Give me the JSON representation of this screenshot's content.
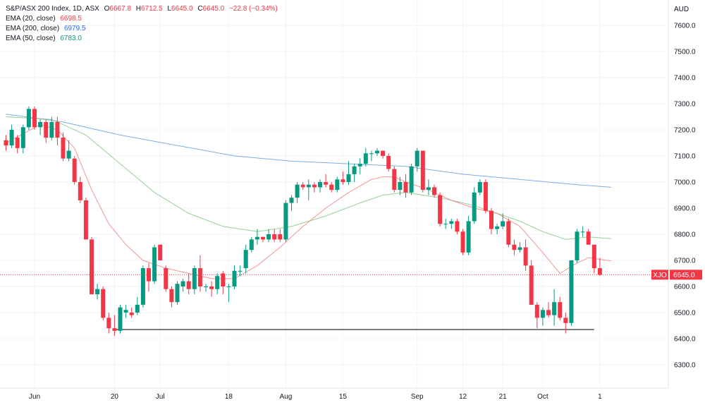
{
  "header": {
    "title": "S&P/ASX 200 Index, 1D, ASX",
    "open_label": "O",
    "open": "6667.8",
    "high_label": "H",
    "high": "6712.5",
    "low_label": "L",
    "low": "6645.0",
    "close_label": "C",
    "close": "6645.0",
    "change": "−22.8 (−0.34%)"
  },
  "indicators": [
    {
      "label": "EMA (20, close)",
      "value": "6698.5",
      "color": "#f23645"
    },
    {
      "label": "EMA (200, close)",
      "value": "6979.5",
      "color": "#2962ff"
    },
    {
      "label": "EMA (50, close)",
      "value": "6783.0",
      "color": "#089981"
    }
  ],
  "price_tag": {
    "symbol": "XJO",
    "value": "6645.0"
  },
  "chart_data": {
    "type": "candlestick",
    "currency": "AUD",
    "ylim": [
      6230,
      7680
    ],
    "y_ticks": [
      6300,
      6400,
      6500,
      6600,
      6700,
      6800,
      6900,
      7000,
      7100,
      7200,
      7300,
      7400,
      7500,
      7600
    ],
    "x_ticks": [
      {
        "label": "Jun",
        "index": 5
      },
      {
        "label": "20",
        "index": 19
      },
      {
        "label": "Jul",
        "index": 27
      },
      {
        "label": "18",
        "index": 39
      },
      {
        "label": "Aug",
        "index": 49
      },
      {
        "label": "15",
        "index": 59
      },
      {
        "label": "Sep",
        "index": 72
      },
      {
        "label": "12",
        "index": 80
      },
      {
        "label": "21",
        "index": 87
      },
      {
        "label": "Oct",
        "index": 94
      },
      {
        "label": "1",
        "index": 104
      }
    ],
    "ohlc": [
      [
        7160,
        7180,
        7120,
        7140
      ],
      [
        7140,
        7220,
        7130,
        7200
      ],
      [
        7170,
        7180,
        7110,
        7130
      ],
      [
        7130,
        7220,
        7110,
        7210
      ],
      [
        7210,
        7290,
        7200,
        7280
      ],
      [
        7280,
        7290,
        7200,
        7210
      ],
      [
        7210,
        7240,
        7180,
        7230
      ],
      [
        7230,
        7240,
        7150,
        7170
      ],
      [
        7170,
        7250,
        7160,
        7230
      ],
      [
        7230,
        7250,
        7140,
        7170
      ],
      [
        7170,
        7190,
        7080,
        7090
      ],
      [
        7090,
        7160,
        7080,
        7120
      ],
      [
        7090,
        7100,
        6990,
        7000
      ],
      [
        7000,
        7020,
        6920,
        6930
      ],
      [
        6930,
        6940,
        6780,
        6780
      ],
      [
        6780,
        6790,
        6570,
        6570
      ],
      [
        6570,
        6610,
        6550,
        6590
      ],
      [
        6590,
        6600,
        6470,
        6480
      ],
      [
        6480,
        6500,
        6420,
        6440
      ],
      [
        6440,
        6490,
        6410,
        6430
      ],
      [
        6430,
        6530,
        6420,
        6520
      ],
      [
        6500,
        6530,
        6480,
        6510
      ],
      [
        6500,
        6520,
        6480,
        6490
      ],
      [
        6500,
        6560,
        6490,
        6530
      ],
      [
        6530,
        6680,
        6520,
        6670
      ],
      [
        6670,
        6690,
        6580,
        6620
      ],
      [
        6620,
        6760,
        6610,
        6750
      ],
      [
        6760,
        6760,
        6700,
        6700
      ],
      [
        6670,
        6680,
        6580,
        6590
      ],
      [
        6590,
        6600,
        6520,
        6540
      ],
      [
        6540,
        6620,
        6530,
        6610
      ],
      [
        6600,
        6630,
        6580,
        6620
      ],
      [
        6620,
        6650,
        6570,
        6590
      ],
      [
        6590,
        6680,
        6570,
        6670
      ],
      [
        6670,
        6720,
        6580,
        6600
      ],
      [
        6600,
        6610,
        6580,
        6600
      ],
      [
        6600,
        6620,
        6560,
        6590
      ],
      [
        6590,
        6650,
        6570,
        6640
      ],
      [
        6650,
        6660,
        6570,
        6600
      ],
      [
        6600,
        6610,
        6540,
        6600
      ],
      [
        6600,
        6680,
        6590,
        6660
      ],
      [
        6660,
        6680,
        6640,
        6660
      ],
      [
        6670,
        6760,
        6650,
        6740
      ],
      [
        6740,
        6790,
        6730,
        6780
      ],
      [
        6780,
        6820,
        6760,
        6790
      ],
      [
        6790,
        6790,
        6770,
        6780
      ],
      [
        6780,
        6820,
        6770,
        6800
      ],
      [
        6800,
        6820,
        6770,
        6780
      ],
      [
        6800,
        6820,
        6770,
        6780
      ],
      [
        6780,
        6930,
        6770,
        6920
      ],
      [
        6920,
        6950,
        6890,
        6940
      ],
      [
        6940,
        7000,
        6920,
        6990
      ],
      [
        6990,
        7000,
        6970,
        6980
      ],
      [
        6980,
        7010,
        6930,
        6990
      ],
      [
        6990,
        7000,
        6960,
        6980
      ],
      [
        6980,
        7010,
        6960,
        7000
      ],
      [
        7000,
        7030,
        6980,
        6990
      ],
      [
        6990,
        7000,
        6960,
        6970
      ],
      [
        6970,
        7020,
        6960,
        7010
      ],
      [
        7010,
        7040,
        6990,
        7000
      ],
      [
        7000,
        7080,
        6990,
        7030
      ],
      [
        7030,
        7070,
        7000,
        7060
      ],
      [
        7060,
        7090,
        7030,
        7070
      ],
      [
        7070,
        7130,
        7060,
        7110
      ],
      [
        7110,
        7120,
        7080,
        7110
      ],
      [
        7110,
        7130,
        7100,
        7120
      ],
      [
        7120,
        7120,
        7090,
        7100
      ],
      [
        7100,
        7110,
        7040,
        7050
      ],
      [
        7050,
        7060,
        6960,
        6970
      ],
      [
        6970,
        7020,
        6950,
        7000
      ],
      [
        7000,
        7030,
        6940,
        6960
      ],
      [
        6960,
        7070,
        6950,
        7060
      ],
      [
        7060,
        7130,
        7040,
        7120
      ],
      [
        7120,
        7120,
        6960,
        6970
      ],
      [
        6970,
        7010,
        6950,
        6980
      ],
      [
        6980,
        6990,
        6940,
        6950
      ],
      [
        6950,
        6960,
        6830,
        6840
      ],
      [
        6840,
        6860,
        6820,
        6840
      ],
      [
        6840,
        6860,
        6820,
        6850
      ],
      [
        6850,
        6860,
        6800,
        6810
      ],
      [
        6810,
        6820,
        6720,
        6730
      ],
      [
        6730,
        6870,
        6720,
        6850
      ],
      [
        6850,
        6980,
        6840,
        6960
      ],
      [
        6960,
        7010,
        6950,
        7000
      ],
      [
        7000,
        7010,
        6880,
        6890
      ],
      [
        6890,
        6900,
        6800,
        6820
      ],
      [
        6820,
        6840,
        6800,
        6830
      ],
      [
        6830,
        6880,
        6820,
        6850
      ],
      [
        6850,
        6860,
        6750,
        6760
      ],
      [
        6760,
        6780,
        6720,
        6740
      ],
      [
        6740,
        6770,
        6730,
        6750
      ],
      [
        6750,
        6780,
        6660,
        6680
      ],
      [
        6680,
        6700,
        6530,
        6530
      ],
      [
        6530,
        6540,
        6440,
        6480
      ],
      [
        6480,
        6520,
        6450,
        6510
      ],
      [
        6510,
        6540,
        6480,
        6490
      ],
      [
        6490,
        6590,
        6450,
        6540
      ],
      [
        6540,
        6560,
        6470,
        6480
      ],
      [
        6480,
        6500,
        6420,
        6460
      ],
      [
        6460,
        6700,
        6450,
        6700
      ],
      [
        6700,
        6820,
        6690,
        6810
      ],
      [
        6810,
        6830,
        6790,
        6810
      ],
      [
        6810,
        6820,
        6770,
        6760
      ],
      [
        6760,
        6760,
        6650,
        6670
      ],
      [
        6670,
        6710,
        6640,
        6645
      ]
    ],
    "ema20": [
      [
        0,
        7150
      ],
      [
        6,
        7220
      ],
      [
        9,
        7200
      ],
      [
        12,
        7130
      ],
      [
        15,
        6970
      ],
      [
        18,
        6840
      ],
      [
        21,
        6760
      ],
      [
        24,
        6700
      ],
      [
        28,
        6670
      ],
      [
        32,
        6650
      ],
      [
        36,
        6630
      ],
      [
        40,
        6630
      ],
      [
        44,
        6680
      ],
      [
        48,
        6750
      ],
      [
        52,
        6830
      ],
      [
        56,
        6900
      ],
      [
        60,
        6960
      ],
      [
        64,
        7010
      ],
      [
        66,
        7020
      ],
      [
        68,
        7020
      ],
      [
        70,
        7000
      ],
      [
        74,
        6970
      ],
      [
        78,
        6930
      ],
      [
        82,
        6900
      ],
      [
        86,
        6880
      ],
      [
        90,
        6830
      ],
      [
        94,
        6730
      ],
      [
        97,
        6650
      ],
      [
        100,
        6690
      ],
      [
        102,
        6710
      ],
      [
        106,
        6698
      ]
    ],
    "ema200": [
      [
        0,
        7260
      ],
      [
        10,
        7230
      ],
      [
        20,
        7180
      ],
      [
        30,
        7140
      ],
      [
        40,
        7100
      ],
      [
        50,
        7080
      ],
      [
        60,
        7070
      ],
      [
        70,
        7060
      ],
      [
        80,
        7030
      ],
      [
        90,
        7010
      ],
      [
        100,
        6990
      ],
      [
        106,
        6980
      ]
    ],
    "ema50": [
      [
        0,
        7250
      ],
      [
        8,
        7240
      ],
      [
        14,
        7180
      ],
      [
        20,
        7070
      ],
      [
        26,
        6960
      ],
      [
        32,
        6880
      ],
      [
        38,
        6830
      ],
      [
        44,
        6810
      ],
      [
        50,
        6830
      ],
      [
        56,
        6870
      ],
      [
        62,
        6920
      ],
      [
        66,
        6950
      ],
      [
        70,
        6960
      ],
      [
        76,
        6940
      ],
      [
        82,
        6910
      ],
      [
        86,
        6880
      ],
      [
        90,
        6850
      ],
      [
        94,
        6810
      ],
      [
        98,
        6780
      ],
      [
        102,
        6790
      ],
      [
        106,
        6783
      ]
    ],
    "support_line": {
      "y": 6435,
      "from_index": 19,
      "to_index": 103
    },
    "last_price": 6645.0
  }
}
